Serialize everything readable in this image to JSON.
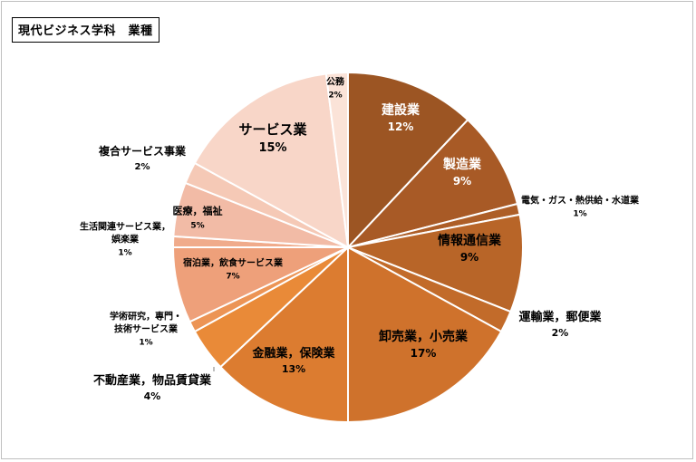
{
  "chart_data": {
    "type": "pie",
    "title": "現代ビジネス学科　業種",
    "slices": [
      {
        "label": "建設業",
        "value": 12,
        "pct": "12%",
        "color": "#9c5523"
      },
      {
        "label": "製造業",
        "value": 9,
        "pct": "9%",
        "color": "#a85a26"
      },
      {
        "label": "電気・ガス・熱供給・水道業",
        "value": 1,
        "pct": "1%",
        "color": "#ad5e27"
      },
      {
        "label": "情報通信業",
        "value": 9,
        "pct": "9%",
        "color": "#b86528"
      },
      {
        "label": "運輸業，郵便業",
        "value": 2,
        "pct": "2%",
        "color": "#c26b2a"
      },
      {
        "label": "卸売業，小売業",
        "value": 17,
        "pct": "17%",
        "color": "#cf722c"
      },
      {
        "label": "金融業，保険業",
        "value": 13,
        "pct": "13%",
        "color": "#dc7c30"
      },
      {
        "label": "不動産業，物品賃貸業",
        "value": 4,
        "pct": "4%",
        "color": "#e98a38"
      },
      {
        "label": "学術研究，専門・技術サービス業",
        "value": 1,
        "pct": "1%",
        "color": "#ec9455"
      },
      {
        "label": "宿泊業，飲食サービス業",
        "value": 7,
        "pct": "7%",
        "color": "#eea07a"
      },
      {
        "label": "生活関連サービス業，娯楽業",
        "value": 1,
        "pct": "1%",
        "color": "#f0ab8b"
      },
      {
        "label": "医療，福祉",
        "value": 5,
        "pct": "5%",
        "color": "#f2bba6"
      },
      {
        "label": "複合サービス事業",
        "value": 2,
        "pct": "2%",
        "color": "#f5c9b6"
      },
      {
        "label": "サービス業",
        "value": 15,
        "pct": "15%",
        "color": "#f8d6c8"
      },
      {
        "label": "公務",
        "value": 2,
        "pct": "2%",
        "color": "#fbe3d8"
      }
    ]
  }
}
